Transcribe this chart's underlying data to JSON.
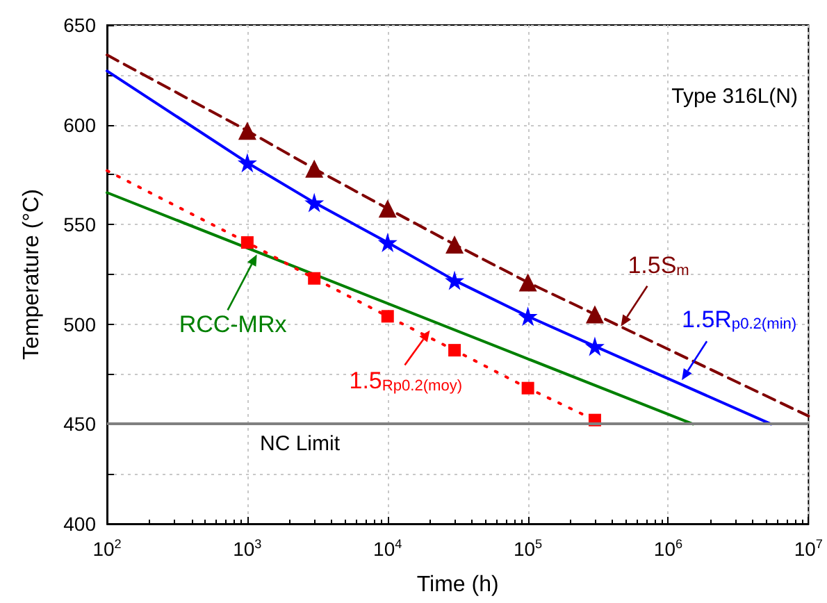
{
  "chart_data": {
    "type": "line",
    "xlabel": "Time (h)",
    "ylabel": "Temperature (°C)",
    "log": "x",
    "xlim": [
      100,
      10000000
    ],
    "xticks": [
      {
        "value": 100,
        "label": "10$^{2}$"
      },
      {
        "value": 1000,
        "label": "10$^{3}$"
      },
      {
        "value": 10000,
        "label": "10$^{4}$"
      },
      {
        "value": 100000,
        "label": "10$^{5}$"
      },
      {
        "value": 1000000,
        "label": "10$^{6}$"
      },
      {
        "value": 10000000,
        "label": "10$^{7}$"
      }
    ],
    "ylim": [
      400,
      650
    ],
    "yticks": [
      400,
      {
        "value": 425,
        "label": null
      },
      450,
      {
        "value": 475,
        "label": null
      },
      500,
      {
        "value": 525,
        "label": null
      },
      550,
      {
        "value": 575,
        "label": null
      },
      600,
      {
        "value": 625,
        "label": null
      },
      650
    ],
    "grid": true,
    "series": [
      {
        "type": "line",
        "color": "#800000",
        "line_style": "dashed",
        "marker": "none",
        "x": [
          100,
          1000,
          3000,
          10000,
          30000,
          100000,
          300000,
          10000000
        ],
        "values": [
          635,
          597,
          578,
          558,
          540,
          521,
          505,
          454
        ]
      },
      {
        "type": "scatter",
        "color": "#800000",
        "marker": "triangle",
        "x": [
          1000,
          3000,
          10000,
          30000,
          100000,
          300000
        ],
        "values": [
          597,
          578,
          558,
          540,
          521,
          505
        ]
      },
      {
        "type": "line",
        "color": "#0000ff",
        "line_style": "solid",
        "marker": "none",
        "x": [
          100,
          1000,
          3000,
          10000,
          30000,
          100000,
          300000,
          5400000
        ],
        "values": [
          627,
          581,
          561,
          541,
          522,
          504,
          489,
          450
        ]
      },
      {
        "type": "scatter",
        "color": "#0000ff",
        "marker": "star",
        "x": [
          1000,
          3000,
          10000,
          30000,
          100000,
          300000
        ],
        "values": [
          581,
          561,
          541,
          522,
          504,
          489
        ]
      },
      {
        "type": "line",
        "color": "#008000",
        "line_style": "solid",
        "marker": "none",
        "x": [
          100,
          1500000
        ],
        "values": [
          566,
          450
        ]
      },
      {
        "type": "line",
        "color": "#ff0000",
        "line_style": "dotted",
        "marker": "none",
        "x": [
          100,
          1000,
          3000,
          10000,
          30000,
          100000,
          300000
        ],
        "values": [
          577,
          541,
          523,
          504,
          487,
          468,
          452
        ]
      },
      {
        "type": "scatter",
        "color": "#ff0000",
        "marker": "square",
        "x": [
          1000,
          3000,
          10000,
          30000,
          100000,
          300000
        ],
        "values": [
          541,
          523,
          504,
          487,
          468,
          452
        ]
      }
    ],
    "ref_lines": [
      {
        "axis": "y",
        "value": 450,
        "label": "NC Limit",
        "color": "#808080"
      }
    ],
    "annotations": [
      "Type 316L(N)",
      {
        "text": "1.5S$_{m}$",
        "x": 460000,
        "y": 499
      },
      {
        "text": "1.5R$_{p0.2(min)}$",
        "x": 1250000,
        "y": 472
      },
      {
        "text": "RCC-MRx",
        "x": 1170,
        "y": 535
      },
      {
        "text": "1.5$_{Rp0.2(moy)}$",
        "x": 20000,
        "y": 497
      }
    ]
  }
}
